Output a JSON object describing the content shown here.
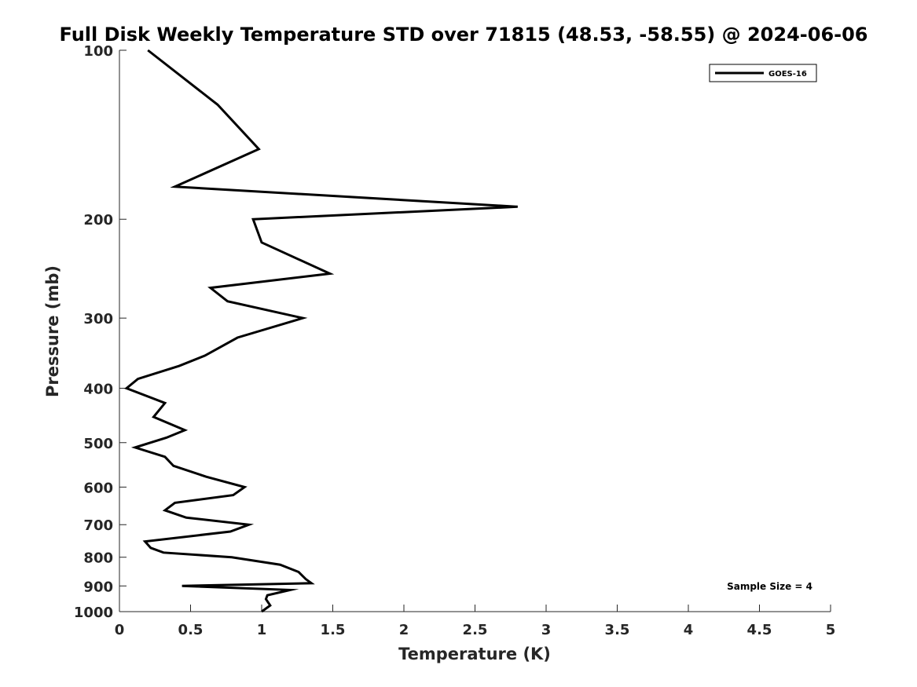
{
  "chart_data": {
    "type": "line",
    "title": "Full Disk Weekly Temperature STD over 71815 (48.53, -58.55) @ 2024-06-06",
    "xlabel": "Temperature (K)",
    "ylabel": "Pressure (mb)",
    "xlim": [
      0,
      5
    ],
    "ylim": [
      100,
      1000
    ],
    "y_scale": "log",
    "y_reversed": true,
    "grid": false,
    "legend_position": "top-right",
    "x_ticks": [
      "0",
      "0.5",
      "1",
      "1.5",
      "2",
      "2.5",
      "3",
      "3.5",
      "4",
      "4.5",
      "5"
    ],
    "y_ticks": [
      "100",
      "200",
      "300",
      "400",
      "500",
      "600",
      "700",
      "800",
      "900",
      "1000"
    ],
    "series": [
      {
        "name": "GOES-16",
        "color": "#000000",
        "x": [
          0.2,
          0.69,
          0.98,
          0.39,
          2.8,
          0.94,
          1.0,
          1.48,
          0.64,
          0.76,
          1.29,
          0.83,
          0.6,
          0.42,
          0.13,
          0.05,
          0.32,
          0.24,
          0.46,
          0.33,
          0.11,
          0.32,
          0.38,
          0.61,
          0.88,
          0.8,
          0.39,
          0.32,
          0.47,
          0.91,
          0.78,
          0.18,
          0.22,
          0.31,
          0.79,
          1.13,
          1.26,
          1.31,
          1.35,
          0.44,
          1.2,
          1.04,
          1.03,
          1.06,
          1.0
        ],
        "y": [
          100,
          125,
          150,
          175,
          190,
          200,
          220,
          250,
          265,
          280,
          300,
          325,
          350,
          365,
          385,
          400,
          425,
          450,
          475,
          490,
          510,
          530,
          550,
          575,
          600,
          620,
          640,
          660,
          680,
          700,
          720,
          750,
          770,
          785,
          800,
          825,
          850,
          875,
          890,
          900,
          915,
          935,
          950,
          975,
          1000
        ]
      }
    ],
    "annotation": "Sample Size = 4"
  }
}
